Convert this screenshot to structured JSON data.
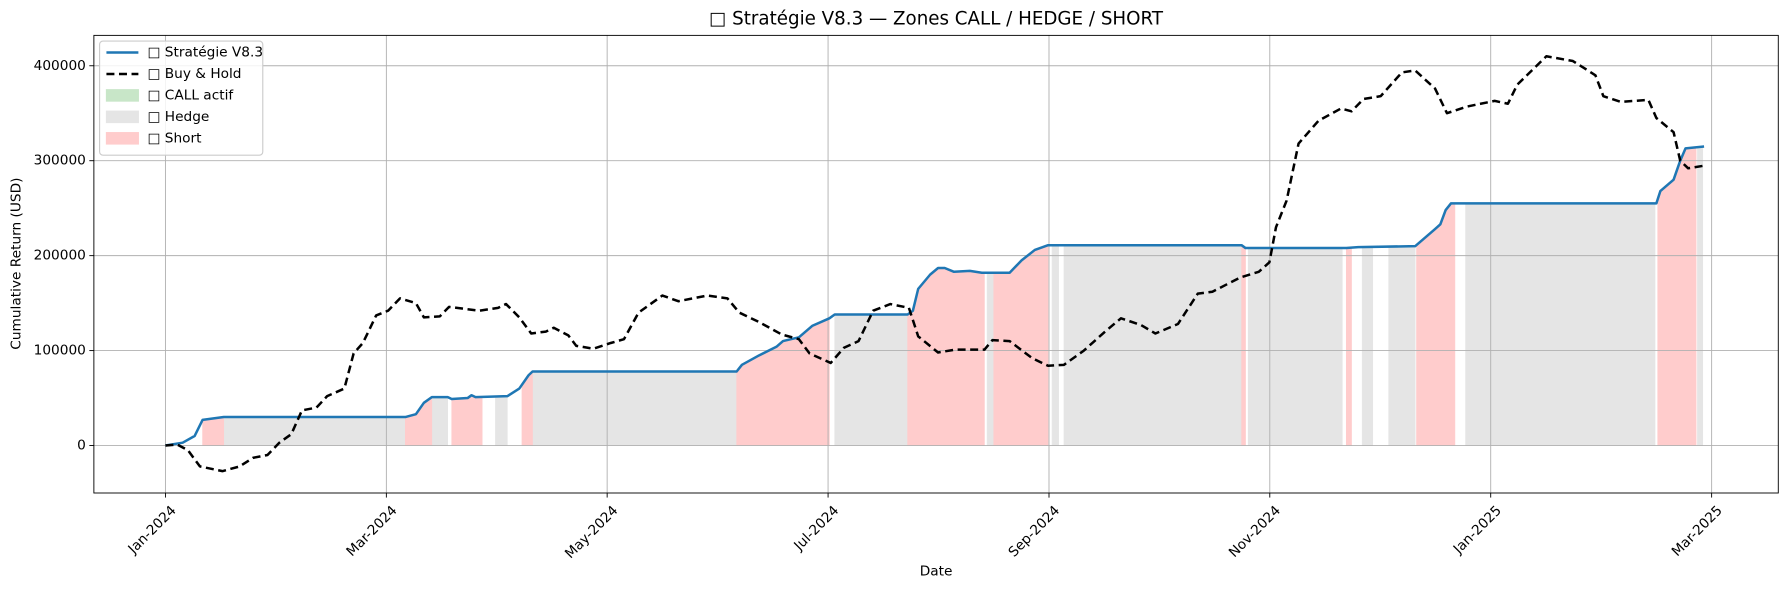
{
  "chart_data": {
    "type": "line",
    "title": "□ Stratégie V8.3 — Zones CALL / HEDGE / SHORT",
    "xlabel": "Date",
    "ylabel": "Cumulative Return (USD)",
    "xlim": [
      2023.946,
      2025.217
    ],
    "ylim": [
      -50000,
      432000
    ],
    "xticks": [
      {
        "value": 2024.0,
        "label": "Jan-2024"
      },
      {
        "value": 2024.1667,
        "label": "Mar-2024"
      },
      {
        "value": 2024.3333,
        "label": "May-2024"
      },
      {
        "value": 2024.5,
        "label": "Jul-2024"
      },
      {
        "value": 2024.6667,
        "label": "Sep-2024"
      },
      {
        "value": 2024.8333,
        "label": "Nov-2024"
      },
      {
        "value": 2025.0,
        "label": "Jan-2025"
      },
      {
        "value": 2025.1667,
        "label": "Mar-2025"
      }
    ],
    "yticks": [
      0,
      100000,
      200000,
      300000,
      400000
    ],
    "grid": true,
    "legend": "upper left",
    "series": [
      {
        "name": "□ Stratégie V8.3",
        "color": "#1f77b4",
        "style": "solid",
        "x": [
          2024.0,
          2024.013,
          2024.022,
          2024.028,
          2024.044,
          2024.181,
          2024.189,
          2024.195,
          2024.201,
          2024.213,
          2024.216,
          2024.228,
          2024.231,
          2024.234,
          2024.258,
          2024.267,
          2024.274,
          2024.277,
          2024.431,
          2024.435,
          2024.448,
          2024.461,
          2024.466,
          2024.478,
          2024.488,
          2024.501,
          2024.505,
          2024.56,
          2024.564,
          2024.568,
          2024.577,
          2024.583,
          2024.588,
          2024.595,
          2024.607,
          2024.616,
          2024.637,
          2024.646,
          2024.656,
          2024.666,
          2024.812,
          2024.815,
          2024.891,
          2024.9,
          2024.943,
          2024.958,
          2024.962,
          2024.966,
          2024.97,
          2025.125,
          2025.128,
          2025.138,
          2025.143,
          2025.147,
          2025.161
        ],
        "values": [
          0,
          3000,
          10000,
          27000,
          30000,
          30000,
          33000,
          45000,
          51000,
          51000,
          49000,
          50000,
          53000,
          51000,
          52000,
          60000,
          74000,
          78000,
          78000,
          85000,
          95000,
          104000,
          110000,
          114000,
          126000,
          134000,
          138000,
          138000,
          142000,
          165000,
          180000,
          187000,
          187000,
          183000,
          184000,
          182000,
          182000,
          195000,
          206000,
          211000,
          211000,
          208000,
          208000,
          209000,
          210000,
          228000,
          233000,
          248000,
          255000,
          255000,
          268000,
          280000,
          300000,
          313000,
          315000
        ]
      },
      {
        "name": "□ Buy & Hold",
        "color": "#000000",
        "style": "dashed",
        "x": [
          2024.0,
          2024.009,
          2024.017,
          2024.026,
          2024.043,
          2024.056,
          2024.066,
          2024.077,
          2024.086,
          2024.095,
          2024.103,
          2024.114,
          2024.122,
          2024.135,
          2024.142,
          2024.149,
          2024.159,
          2024.168,
          2024.177,
          2024.189,
          2024.195,
          2024.207,
          2024.214,
          2024.237,
          2024.251,
          2024.257,
          2024.267,
          2024.276,
          2024.287,
          2024.293,
          2024.304,
          2024.31,
          2024.323,
          2024.336,
          2024.346,
          2024.357,
          2024.375,
          2024.387,
          2024.409,
          2024.424,
          2024.433,
          2024.448,
          2024.465,
          2024.478,
          2024.486,
          2024.502,
          2024.512,
          2024.523,
          2024.534,
          2024.547,
          2024.561,
          2024.568,
          2024.583,
          2024.596,
          2024.618,
          2024.624,
          2024.637,
          2024.654,
          2024.666,
          2024.678,
          2024.693,
          2024.709,
          2024.721,
          2024.736,
          2024.747,
          2024.764,
          2024.779,
          2024.79,
          2024.811,
          2024.825,
          2024.833,
          2024.838,
          2024.846,
          2024.855,
          2024.87,
          2024.887,
          2024.895,
          2024.904,
          2024.917,
          2024.933,
          2024.943,
          2024.958,
          2024.967,
          2024.982,
          2025.003,
          2025.013,
          2025.02,
          2025.031,
          2025.042,
          2025.062,
          2025.079,
          2025.085,
          2025.098,
          2025.119,
          2025.125,
          2025.138,
          2025.143,
          2025.149,
          2025.162
        ],
        "values": [
          0,
          1000,
          -5000,
          -22000,
          -27000,
          -22000,
          -13000,
          -10000,
          3000,
          12000,
          37000,
          40000,
          52000,
          60000,
          97000,
          108000,
          137000,
          142000,
          155000,
          150000,
          135000,
          136000,
          146000,
          142000,
          145000,
          149000,
          135000,
          118000,
          120000,
          124000,
          116000,
          105000,
          102000,
          108000,
          112000,
          140000,
          158000,
          152000,
          158000,
          155000,
          140000,
          130000,
          117000,
          112000,
          97000,
          87000,
          103000,
          110000,
          142000,
          149000,
          145000,
          115000,
          98000,
          101000,
          101000,
          111000,
          110000,
          92000,
          84000,
          85000,
          100000,
          120000,
          134000,
          127000,
          118000,
          128000,
          160000,
          162000,
          177000,
          183000,
          193000,
          230000,
          258000,
          318000,
          342000,
          355000,
          352000,
          365000,
          368000,
          393000,
          395000,
          376000,
          350000,
          357000,
          363000,
          360000,
          380000,
          395000,
          410000,
          405000,
          390000,
          368000,
          362000,
          364000,
          345000,
          330000,
          300000,
          292000,
          295000
        ]
      }
    ],
    "zones": [
      {
        "name": "□ CALL actif",
        "color": "#c8e6c8",
        "spans": []
      },
      {
        "name": "□ Hedge",
        "color": "#e5e5e5",
        "spans": [
          [
            2024.044,
            2024.181
          ],
          [
            2024.201,
            2024.213
          ],
          [
            2024.249,
            2024.258
          ],
          [
            2024.277,
            2024.431
          ],
          [
            2024.505,
            2024.56
          ],
          [
            2024.62,
            2024.625
          ],
          [
            2024.669,
            2024.674
          ],
          [
            2024.678,
            2024.812
          ],
          [
            2024.817,
            2024.888
          ],
          [
            2024.903,
            2024.911
          ],
          [
            2024.923,
            2024.943
          ],
          [
            2024.981,
            2025.124
          ],
          [
            2025.156,
            2025.16
          ]
        ]
      },
      {
        "name": "□ Short",
        "color": "#ffcccc",
        "spans": [
          [
            2024.028,
            2024.044
          ],
          [
            2024.181,
            2024.201
          ],
          [
            2024.216,
            2024.239
          ],
          [
            2024.269,
            2024.277
          ],
          [
            2024.431,
            2024.501
          ],
          [
            2024.56,
            2024.618
          ],
          [
            2024.625,
            2024.666
          ],
          [
            2024.812,
            2024.815
          ],
          [
            2024.891,
            2024.895
          ],
          [
            2024.944,
            2024.973
          ],
          [
            2025.126,
            2025.155
          ]
        ]
      }
    ]
  }
}
